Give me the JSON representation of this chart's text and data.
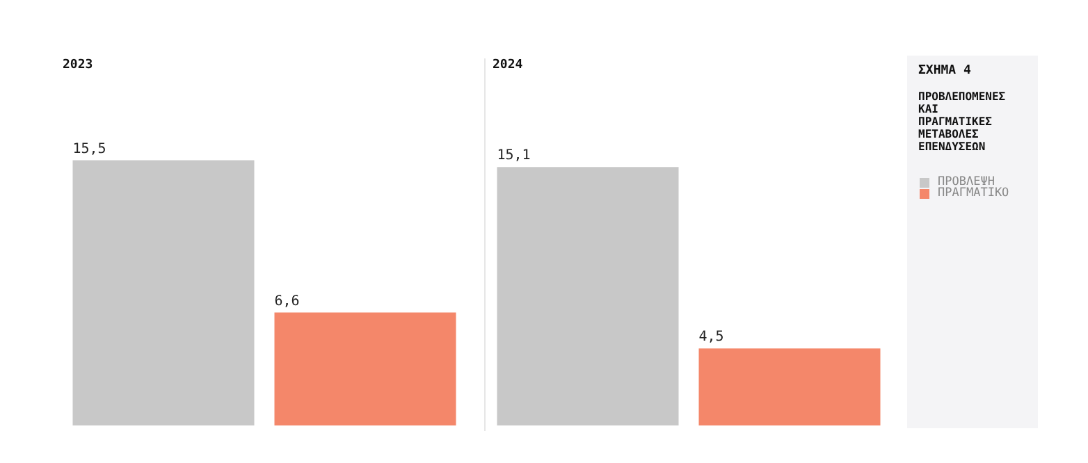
{
  "chart_data": [
    {
      "type": "bar",
      "title": "2023",
      "categories": [
        null
      ],
      "series": [
        {
          "color": "#c8c8c8",
          "values": [
            15.5
          ],
          "value_labels": [
            "15,5"
          ]
        },
        {
          "color": "#f4876a",
          "values": [
            6.6
          ],
          "value_labels": [
            "6,6"
          ]
        }
      ],
      "tick_labels": false
    },
    {
      "type": "bar",
      "title": "2024",
      "categories": [
        null
      ],
      "series": [
        {
          "name": "ΠΡΟΒΛΕΨΗ",
          "color": "#c8c8c8",
          "values": [
            15.1
          ],
          "value_labels": [
            "15,1"
          ]
        },
        {
          "name": "ΠΡΑΓΜΑΤΙΚΟ",
          "color": "#f4876a",
          "values": [
            4.5
          ],
          "value_labels": [
            "4,5"
          ]
        }
      ],
      "tick_labels": false,
      "legend": "right"
    },
    {
      "type": "other",
      "title": "ΣΧΗΜΑ 4",
      "subtitle": "ΠΡΟΒΛΕΠΟΜΕΝΕΣ ΚΑΙ ΠΡΑΓΜΑΤΙΚΕΣ ΜΕΤΑΒΟΛΕΣ ΕΠΕΝΔΥΣΕΩΝ"
    }
  ]
}
